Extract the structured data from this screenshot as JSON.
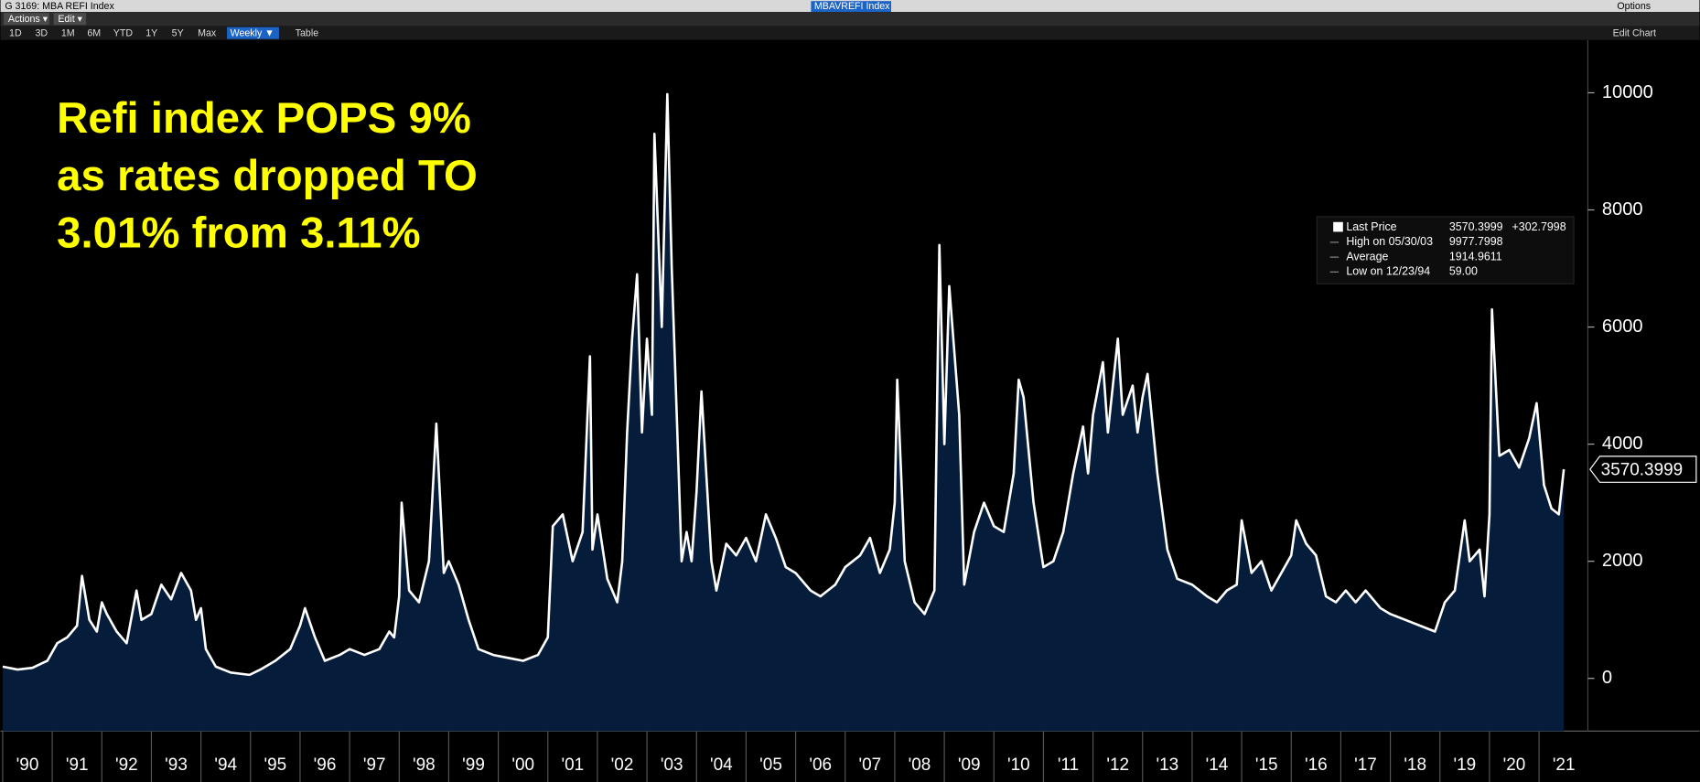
{
  "window": {
    "title": "G 3169: MBA REFI Index",
    "ticker": "MBAVREFI Index",
    "options": "Options"
  },
  "menu": [
    "Actions ▾",
    "Edit ▾"
  ],
  "toolbar": {
    "ranges": [
      "1D",
      "3D",
      "1M",
      "6M",
      "YTD",
      "1Y",
      "5Y",
      "Max"
    ],
    "frequency": "Weekly ▼",
    "table": "Table",
    "edit_chart": "Edit Chart"
  },
  "legend": {
    "rows": [
      {
        "label": "Last Price",
        "value": "3570.3999",
        "change": "+302.7998"
      },
      {
        "label": "High on 05/30/03",
        "value": "9977.7998"
      },
      {
        "label": "Average",
        "value": "1914.9611"
      },
      {
        "label": "Low on 12/23/94",
        "value": "59.00"
      }
    ]
  },
  "chart_data": {
    "type": "area",
    "annotation": [
      "Refi index POPS 9%",
      "as rates dropped TO",
      "3.01% from 3.11%"
    ],
    "x": [
      1990.0,
      1990.3,
      1990.6,
      1990.9,
      1991.1,
      1991.3,
      1991.5,
      1991.6,
      1991.75,
      1991.9,
      1992.0,
      1992.1,
      1992.3,
      1992.5,
      1992.7,
      1992.8,
      1993.0,
      1993.2,
      1993.4,
      1993.6,
      1993.8,
      1993.9,
      1994.0,
      1994.1,
      1994.3,
      1994.6,
      1994.98,
      1995.2,
      1995.5,
      1995.8,
      1996.0,
      1996.1,
      1996.3,
      1996.5,
      1996.8,
      1997.0,
      1997.3,
      1997.6,
      1997.8,
      1997.9,
      1998.0,
      1998.05,
      1998.2,
      1998.4,
      1998.6,
      1998.75,
      1998.9,
      1999.0,
      1999.2,
      1999.4,
      1999.6,
      1999.9,
      2000.2,
      2000.5,
      2000.8,
      2001.0,
      2001.1,
      2001.3,
      2001.5,
      2001.7,
      2001.85,
      2001.9,
      2002.0,
      2002.2,
      2002.4,
      2002.5,
      2002.6,
      2002.7,
      2002.8,
      2002.9,
      2003.0,
      2003.1,
      2003.15,
      2003.3,
      2003.41,
      2003.5,
      2003.6,
      2003.7,
      2003.8,
      2003.9,
      2004.0,
      2004.1,
      2004.3,
      2004.4,
      2004.6,
      2004.8,
      2005.0,
      2005.2,
      2005.4,
      2005.6,
      2005.8,
      2006.0,
      2006.3,
      2006.5,
      2006.8,
      2007.0,
      2007.3,
      2007.5,
      2007.7,
      2007.9,
      2008.0,
      2008.05,
      2008.2,
      2008.4,
      2008.6,
      2008.8,
      2008.9,
      2009.0,
      2009.1,
      2009.3,
      2009.4,
      2009.6,
      2009.8,
      2010.0,
      2010.2,
      2010.4,
      2010.5,
      2010.6,
      2010.8,
      2011.0,
      2011.2,
      2011.4,
      2011.6,
      2011.8,
      2011.9,
      2012.0,
      2012.2,
      2012.3,
      2012.5,
      2012.6,
      2012.8,
      2012.9,
      2013.0,
      2013.1,
      2013.3,
      2013.5,
      2013.7,
      2014.0,
      2014.3,
      2014.5,
      2014.7,
      2014.9,
      2015.0,
      2015.2,
      2015.4,
      2015.6,
      2015.8,
      2016.0,
      2016.1,
      2016.3,
      2016.5,
      2016.7,
      2016.9,
      2017.1,
      2017.3,
      2017.5,
      2017.8,
      2018.0,
      2018.3,
      2018.6,
      2018.9,
      2019.1,
      2019.3,
      2019.5,
      2019.6,
      2019.8,
      2019.9,
      2020.0,
      2020.05,
      2020.2,
      2020.4,
      2020.6,
      2020.8,
      2020.95,
      2021.1,
      2021.25,
      2021.4,
      2021.5
    ],
    "series": [
      {
        "name": "Last Price",
        "color": "#ffffff",
        "fill": "#051d3b",
        "values": [
          200,
          150,
          180,
          300,
          600,
          700,
          900,
          1750,
          1000,
          800,
          1300,
          1100,
          800,
          600,
          1500,
          1000,
          1100,
          1600,
          1350,
          1800,
          1500,
          1000,
          1200,
          500,
          200,
          100,
          59,
          150,
          300,
          500,
          900,
          1200,
          700,
          300,
          400,
          500,
          400,
          500,
          800,
          700,
          1400,
          3000,
          1500,
          1300,
          2000,
          4350,
          1800,
          2000,
          1600,
          1000,
          500,
          400,
          350,
          300,
          400,
          700,
          2600,
          2800,
          2000,
          2500,
          5500,
          2200,
          2800,
          1700,
          1300,
          2000,
          4200,
          5800,
          6900,
          4200,
          5800,
          4500,
          9300,
          6000,
          9977.7998,
          7000,
          4500,
          2000,
          2500,
          2000,
          3200,
          4900,
          2000,
          1500,
          2300,
          2100,
          2400,
          2000,
          2800,
          2400,
          1900,
          1800,
          1500,
          1400,
          1600,
          1900,
          2100,
          2400,
          1800,
          2200,
          3000,
          5100,
          2000,
          1300,
          1100,
          1500,
          7400,
          4000,
          6700,
          4500,
          1600,
          2500,
          3000,
          2600,
          2500,
          3500,
          5100,
          4800,
          3000,
          1900,
          2000,
          2500,
          3500,
          4300,
          3500,
          4500,
          5400,
          4200,
          5800,
          4500,
          5000,
          4200,
          4800,
          5200,
          3500,
          2200,
          1700,
          1600,
          1400,
          1300,
          1500,
          1600,
          2700,
          1800,
          2000,
          1500,
          1800,
          2100,
          2700,
          2300,
          2100,
          1400,
          1300,
          1500,
          1300,
          1500,
          1200,
          1100,
          1000,
          900,
          800,
          1300,
          1500,
          2700,
          2000,
          2200,
          1400,
          2800,
          6300,
          3800,
          3900,
          3600,
          4100,
          4700,
          3300,
          2900,
          2800,
          3570.3999
        ]
      }
    ],
    "xlim": [
      1990,
      2022
    ],
    "xticks": [
      {
        "value": 1990,
        "label": "'90"
      },
      {
        "value": 1991,
        "label": "'91"
      },
      {
        "value": 1992,
        "label": "'92"
      },
      {
        "value": 1993,
        "label": "'93"
      },
      {
        "value": 1994,
        "label": "'94"
      },
      {
        "value": 1995,
        "label": "'95"
      },
      {
        "value": 1996,
        "label": "'96"
      },
      {
        "value": 1997,
        "label": "'97"
      },
      {
        "value": 1998,
        "label": "'98"
      },
      {
        "value": 1999,
        "label": "'99"
      },
      {
        "value": 2000,
        "label": "'00"
      },
      {
        "value": 2001,
        "label": "'01"
      },
      {
        "value": 2002,
        "label": "'02"
      },
      {
        "value": 2003,
        "label": "'03"
      },
      {
        "value": 2004,
        "label": "'04"
      },
      {
        "value": 2005,
        "label": "'05"
      },
      {
        "value": 2006,
        "label": "'06"
      },
      {
        "value": 2007,
        "label": "'07"
      },
      {
        "value": 2008,
        "label": "'08"
      },
      {
        "value": 2009,
        "label": "'09"
      },
      {
        "value": 2010,
        "label": "'10"
      },
      {
        "value": 2011,
        "label": "'11"
      },
      {
        "value": 2012,
        "label": "'12"
      },
      {
        "value": 2013,
        "label": "'13"
      },
      {
        "value": 2014,
        "label": "'14"
      },
      {
        "value": 2015,
        "label": "'15"
      },
      {
        "value": 2016,
        "label": "'16"
      },
      {
        "value": 2017,
        "label": "'17"
      },
      {
        "value": 2018,
        "label": "'18"
      },
      {
        "value": 2019,
        "label": "'19"
      },
      {
        "value": 2020,
        "label": "'20"
      },
      {
        "value": 2021,
        "label": "'21"
      }
    ],
    "ylim": [
      -900,
      10900
    ],
    "yticks": [
      0,
      2000,
      4000,
      6000,
      8000,
      10000
    ],
    "grid": false
  }
}
